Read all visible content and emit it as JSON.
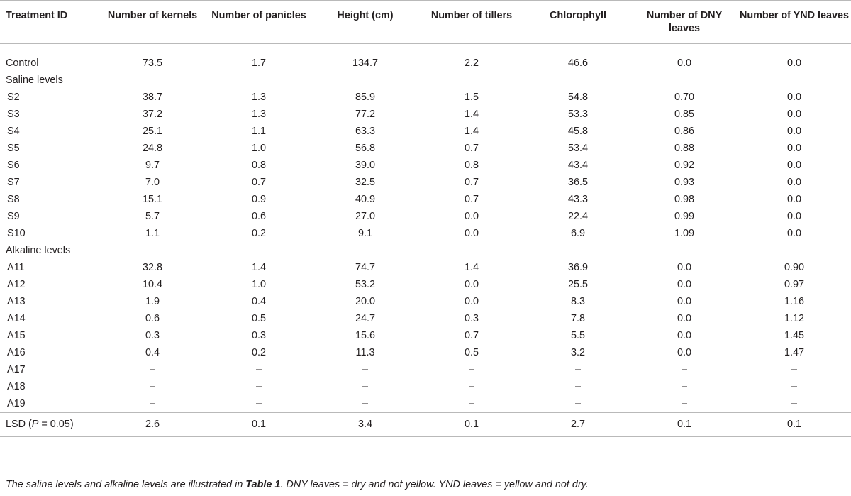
{
  "table": {
    "columns": [
      "Treatment ID",
      "Number of kernels",
      "Number of panicles",
      "Height (cm)",
      "Number of tillers",
      "Chlorophyll",
      "Number of DNY leaves",
      "Number of YND leaves"
    ],
    "control": {
      "id": "Control",
      "values": [
        "73.5",
        "1.7",
        "134.7",
        "2.2",
        "46.6",
        "0.0",
        "0.0"
      ]
    },
    "saline": {
      "label": "Saline levels",
      "rows": [
        {
          "id": "S2",
          "values": [
            "38.7",
            "1.3",
            "85.9",
            "1.5",
            "54.8",
            "0.70",
            "0.0"
          ]
        },
        {
          "id": "S3",
          "values": [
            "37.2",
            "1.3",
            "77.2",
            "1.4",
            "53.3",
            "0.85",
            "0.0"
          ]
        },
        {
          "id": "S4",
          "values": [
            "25.1",
            "1.1",
            "63.3",
            "1.4",
            "45.8",
            "0.86",
            "0.0"
          ]
        },
        {
          "id": "S5",
          "values": [
            "24.8",
            "1.0",
            "56.8",
            "0.7",
            "53.4",
            "0.88",
            "0.0"
          ]
        },
        {
          "id": "S6",
          "values": [
            "9.7",
            "0.8",
            "39.0",
            "0.8",
            "43.4",
            "0.92",
            "0.0"
          ]
        },
        {
          "id": "S7",
          "values": [
            "7.0",
            "0.7",
            "32.5",
            "0.7",
            "36.5",
            "0.93",
            "0.0"
          ]
        },
        {
          "id": "S8",
          "values": [
            "15.1",
            "0.9",
            "40.9",
            "0.7",
            "43.3",
            "0.98",
            "0.0"
          ]
        },
        {
          "id": "S9",
          "values": [
            "5.7",
            "0.6",
            "27.0",
            "0.0",
            "22.4",
            "0.99",
            "0.0"
          ]
        },
        {
          "id": "S10",
          "values": [
            "1.1",
            "0.2",
            "9.1",
            "0.0",
            "6.9",
            "1.09",
            "0.0"
          ]
        }
      ]
    },
    "alkaline": {
      "label": "Alkaline levels",
      "rows": [
        {
          "id": "A11",
          "values": [
            "32.8",
            "1.4",
            "74.7",
            "1.4",
            "36.9",
            "0.0",
            "0.90"
          ]
        },
        {
          "id": "A12",
          "values": [
            "10.4",
            "1.0",
            "53.2",
            "0.0",
            "25.5",
            "0.0",
            "0.97"
          ]
        },
        {
          "id": "A13",
          "values": [
            "1.9",
            "0.4",
            "20.0",
            "0.0",
            "8.3",
            "0.0",
            "1.16"
          ]
        },
        {
          "id": "A14",
          "values": [
            "0.6",
            "0.5",
            "24.7",
            "0.3",
            "7.8",
            "0.0",
            "1.12"
          ]
        },
        {
          "id": "A15",
          "values": [
            "0.3",
            "0.3",
            "15.6",
            "0.7",
            "5.5",
            "0.0",
            "1.45"
          ]
        },
        {
          "id": "A16",
          "values": [
            "0.4",
            "0.2",
            "11.3",
            "0.5",
            "3.2",
            "0.0",
            "1.47"
          ]
        },
        {
          "id": "A17",
          "values": [
            "–",
            "–",
            "–",
            "–",
            "–",
            "–",
            "–"
          ]
        },
        {
          "id": "A18",
          "values": [
            "–",
            "–",
            "–",
            "–",
            "–",
            "–",
            "–"
          ]
        },
        {
          "id": "A19",
          "values": [
            "–",
            "–",
            "–",
            "–",
            "–",
            "–",
            "–"
          ]
        }
      ]
    },
    "lsd": {
      "label_prefix": "LSD (",
      "label_italic": "P",
      "label_suffix": " = 0.05)",
      "values": [
        "2.6",
        "0.1",
        "3.4",
        "0.1",
        "2.7",
        "0.1",
        "0.1"
      ]
    }
  },
  "caption": {
    "part1": "The saline levels and alkaline levels are illustrated in ",
    "bold_ref": "Table 1",
    "part2": ". DNY leaves = dry and not yellow. YND leaves = yellow and not dry."
  },
  "colors": {
    "text": "#231f20",
    "rule": "#b9b9b9"
  }
}
